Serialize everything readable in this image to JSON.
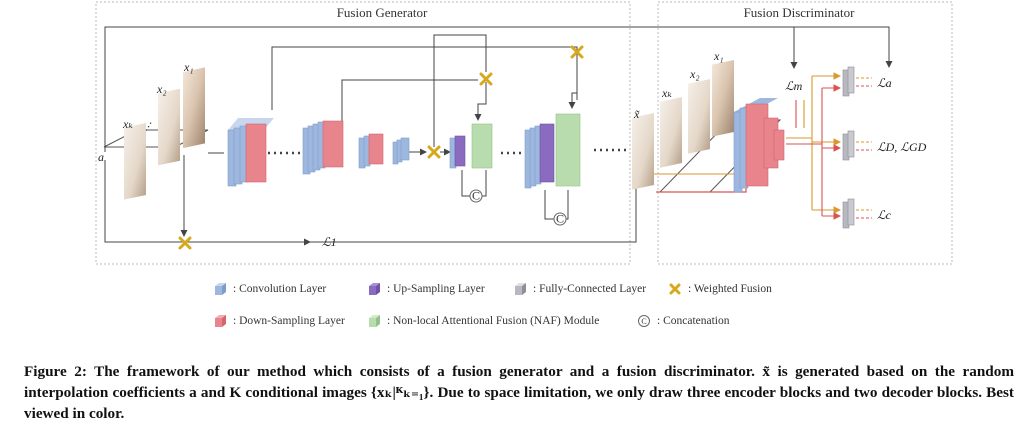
{
  "sections": {
    "generator_title": "Fusion Generator",
    "discriminator_title": "Fusion Discriminator"
  },
  "inputs": {
    "x1": "x₁",
    "x2": "x₂",
    "xk": "xₖ",
    "a": "a",
    "dots": "···"
  },
  "outputs": {
    "x_tilde": "x̃",
    "loss_m": "ℒm",
    "loss_a": "ℒa",
    "loss_d": "ℒD, ℒGD",
    "loss_c": "ℒc",
    "loss_1": "ℒ1"
  },
  "colors": {
    "convolution": "#9db7de",
    "down_sampling": "#e8848c",
    "up_sampling": "#8a6bbf",
    "fully_connected": "#b8b8c0",
    "naf": "#b9dcae",
    "weighted_fusion": "#d8a81c",
    "red_line": "#d9534f",
    "orange_line": "#d79a2e",
    "dark_line": "#444444"
  },
  "legend": [
    {
      "icon": "cube-blue-icon",
      "label": ": Convolution Layer"
    },
    {
      "icon": "cube-purple-icon",
      "label": ": Up-Sampling Layer"
    },
    {
      "icon": "cube-gray-icon",
      "label": ": Fully-Connected Layer"
    },
    {
      "icon": "cross-icon",
      "label": ": Weighted Fusion"
    },
    {
      "icon": "cube-red-icon",
      "label": ": Down-Sampling Layer"
    },
    {
      "icon": "cube-green-icon",
      "label": ": Non-local Attentional Fusion (NAF) Module"
    },
    {
      "icon": "concat-icon",
      "label": ": Concatenation"
    }
  ],
  "caption": "Figure 2: The framework of our method which consists of a fusion generator and a fusion discriminator. x̃ is generated based on the random interpolation coefficients a and K conditional images {xₖ|ᴷₖ₌₁}. Due to space limitation, we only draw three encoder blocks and two decoder blocks. Best viewed in color."
}
